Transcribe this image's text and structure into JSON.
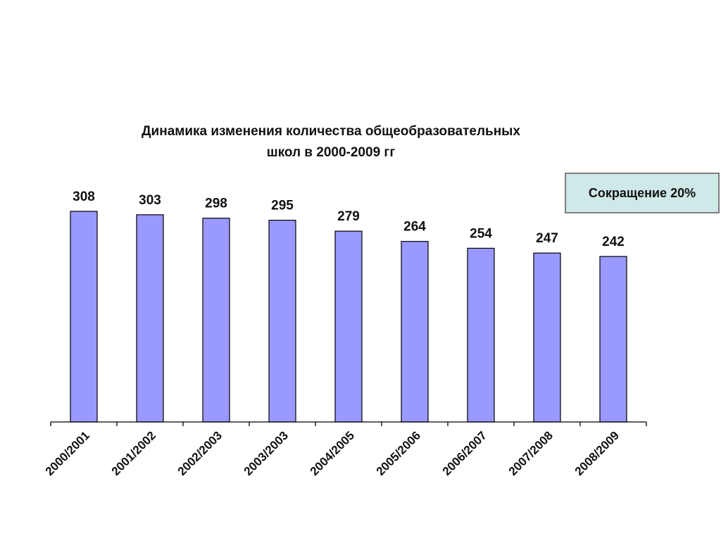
{
  "chart_data": {
    "type": "bar",
    "title": "Динамика изменения количества общеобразовательных",
    "subtitle": "школ в 2000-2009 гг",
    "xlabel": "",
    "ylabel": "",
    "categories": [
      "2000/2001",
      "2001/2002",
      "2002/2003",
      "2003/2003",
      "2004/2005",
      "2005/2006",
      "2006/2007",
      "2007/2008",
      "2008/2009"
    ],
    "values": [
      308,
      303,
      298,
      295,
      279,
      264,
      254,
      247,
      242
    ],
    "ylim": [
      0,
      308
    ],
    "grid": false,
    "legend": "none",
    "bar_color": "#9999ff",
    "annotation": "Сокращение 20%",
    "annotation_color": "#cfe8e8"
  }
}
